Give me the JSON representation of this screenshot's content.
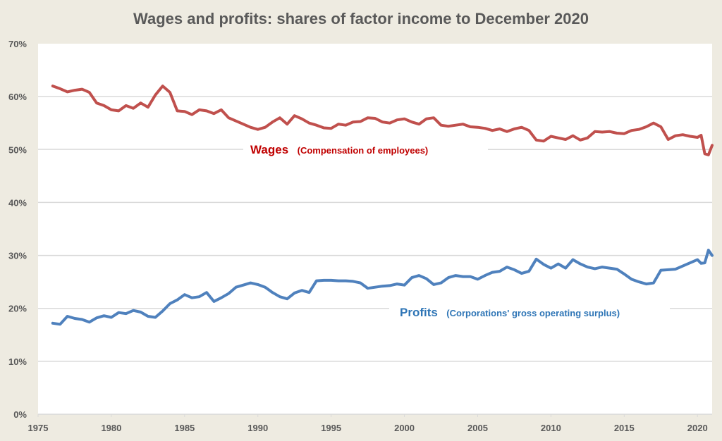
{
  "chart_data": {
    "type": "line",
    "title": "Wages and profits: shares of factor income to December 2020",
    "xlabel": "",
    "ylabel": "",
    "xlim": [
      1975,
      2021
    ],
    "ylim": [
      0,
      70
    ],
    "grid": true,
    "x_ticks": [
      "1975",
      "1980",
      "1985",
      "1990",
      "1995",
      "2000",
      "2005",
      "2010",
      "2015",
      "2020"
    ],
    "x_tick_values": [
      1975,
      1980,
      1985,
      1990,
      1995,
      2000,
      2005,
      2010,
      2015,
      2020
    ],
    "y_ticks": [
      "0%",
      "10%",
      "20%",
      "30%",
      "40%",
      "50%",
      "60%",
      "70%"
    ],
    "y_tick_values": [
      0,
      10,
      20,
      30,
      40,
      50,
      60,
      70
    ],
    "x": [
      1976.0,
      1976.5,
      1977.0,
      1977.5,
      1978.0,
      1978.5,
      1979.0,
      1979.5,
      1980.0,
      1980.5,
      1981.0,
      1981.5,
      1982.0,
      1982.5,
      1983.0,
      1983.5,
      1984.0,
      1984.5,
      1985.0,
      1985.5,
      1986.0,
      1986.5,
      1987.0,
      1987.5,
      1988.0,
      1988.5,
      1989.0,
      1989.5,
      1990.0,
      1990.5,
      1991.0,
      1991.5,
      1992.0,
      1992.5,
      1993.0,
      1993.5,
      1994.0,
      1994.5,
      1995.0,
      1995.5,
      1996.0,
      1996.5,
      1997.0,
      1997.5,
      1998.0,
      1998.5,
      1999.0,
      1999.5,
      2000.0,
      2000.5,
      2001.0,
      2001.5,
      2002.0,
      2002.5,
      2003.0,
      2003.5,
      2004.0,
      2004.5,
      2005.0,
      2005.5,
      2006.0,
      2006.5,
      2007.0,
      2007.5,
      2008.0,
      2008.5,
      2009.0,
      2009.5,
      2010.0,
      2010.5,
      2011.0,
      2011.5,
      2012.0,
      2012.5,
      2013.0,
      2013.5,
      2014.0,
      2014.5,
      2015.0,
      2015.5,
      2016.0,
      2016.5,
      2017.0,
      2017.5,
      2018.0,
      2018.5,
      2019.0,
      2019.5,
      2020.0,
      2020.25,
      2020.5,
      2020.75,
      2021.0
    ],
    "series": [
      {
        "name": "Wages",
        "label": "Wages",
        "sublabel": "(Compensation of employees)",
        "color": "#c0504d",
        "values": [
          62.0,
          61.5,
          60.9,
          61.2,
          61.4,
          60.8,
          58.8,
          58.3,
          57.5,
          57.3,
          58.3,
          57.8,
          58.8,
          58.0,
          60.3,
          62.0,
          60.8,
          57.3,
          57.2,
          56.6,
          57.5,
          57.3,
          56.8,
          57.5,
          56.0,
          55.4,
          54.8,
          54.2,
          53.8,
          54.2,
          55.2,
          56.0,
          54.8,
          56.4,
          55.8,
          55.0,
          54.6,
          54.1,
          54.0,
          54.8,
          54.6,
          55.2,
          55.3,
          56.0,
          55.9,
          55.2,
          55.0,
          55.6,
          55.8,
          55.2,
          54.8,
          55.8,
          56.0,
          54.6,
          54.4,
          54.6,
          54.8,
          54.3,
          54.2,
          54.0,
          53.6,
          53.9,
          53.4,
          53.9,
          54.2,
          53.6,
          51.8,
          51.6,
          52.5,
          52.2,
          51.9,
          52.6,
          51.8,
          52.2,
          53.4,
          53.3,
          53.4,
          53.1,
          53.0,
          53.6,
          53.8,
          54.3,
          55.0,
          54.3,
          51.9,
          52.6,
          52.8,
          52.5,
          52.3,
          52.7,
          49.2,
          49.0,
          50.8
        ]
      },
      {
        "name": "Profits",
        "label": "Profits",
        "sublabel": "(Corporations' gross operating surplus)",
        "color": "#4f81bd",
        "values": [
          17.2,
          17.0,
          18.5,
          18.1,
          17.9,
          17.4,
          18.2,
          18.6,
          18.3,
          19.2,
          19.0,
          19.6,
          19.3,
          18.5,
          18.3,
          19.5,
          20.9,
          21.6,
          22.6,
          22.0,
          22.2,
          23.0,
          21.3,
          22.0,
          22.8,
          24.0,
          24.4,
          24.8,
          24.5,
          24.0,
          23.0,
          22.2,
          21.8,
          22.9,
          23.4,
          23.0,
          25.2,
          25.3,
          25.3,
          25.2,
          25.2,
          25.1,
          24.8,
          23.8,
          24.0,
          24.2,
          24.3,
          24.6,
          24.4,
          25.8,
          26.2,
          25.6,
          24.5,
          24.8,
          25.8,
          26.2,
          26.0,
          26.0,
          25.5,
          26.2,
          26.8,
          27.0,
          27.8,
          27.3,
          26.6,
          27.0,
          29.3,
          28.3,
          27.6,
          28.4,
          27.6,
          29.2,
          28.4,
          27.8,
          27.5,
          27.8,
          27.6,
          27.4,
          26.5,
          25.5,
          25.0,
          24.6,
          24.8,
          27.2,
          27.3,
          27.4,
          28.0,
          28.6,
          29.2,
          28.5,
          28.6,
          31.0,
          30.0
        ]
      }
    ]
  }
}
